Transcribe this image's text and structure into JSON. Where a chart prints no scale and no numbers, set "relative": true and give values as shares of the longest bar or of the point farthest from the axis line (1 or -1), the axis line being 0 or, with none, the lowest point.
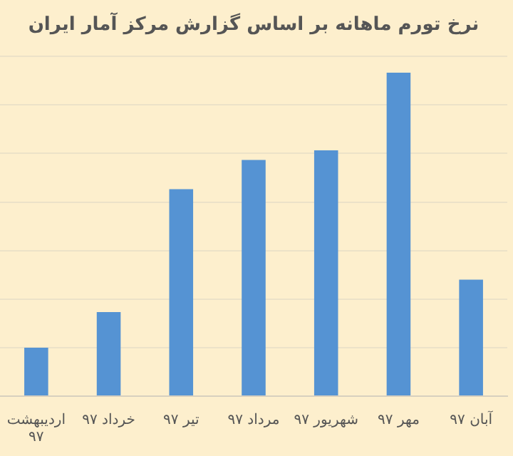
{
  "chart_data": {
    "type": "bar",
    "title": "نرخ تورم ماهانه بر اساس گزارش مرکز آمار ایران",
    "categories": [
      "اردیبهشت ۹۷",
      "خرداد ۹۷",
      "تیر ۹۷",
      "مرداد ۹۷",
      "شهریور ۹۷",
      "مهر ۹۷",
      "آبان ۹۷"
    ],
    "values": [
      0.15,
      0.26,
      0.64,
      0.73,
      0.76,
      1,
      0.36
    ],
    "color": "#5593d3",
    "relative": true,
    "grid": "y",
    "legend": false
  }
}
